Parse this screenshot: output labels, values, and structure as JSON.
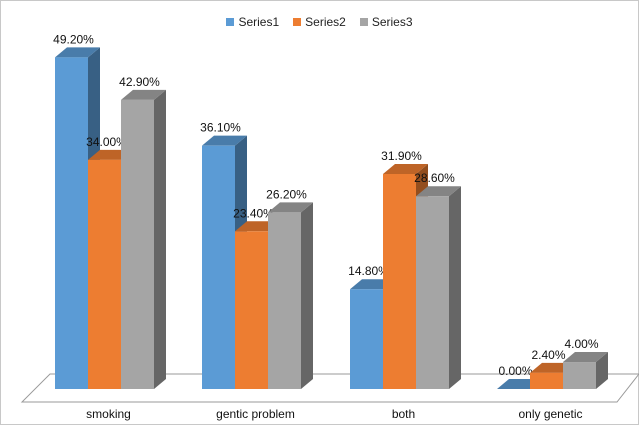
{
  "chart_data": {
    "type": "bar",
    "title": "",
    "xlabel": "",
    "ylabel": "",
    "categories": [
      "smoking",
      "gentic problem",
      "both",
      "only genetic"
    ],
    "series": [
      {
        "name": "Series1",
        "values": [
          49.2,
          36.1,
          14.8,
          0.0
        ],
        "labels": [
          "49.20%",
          "36.10%",
          "14.80%",
          "0.00%"
        ],
        "color": "#5b9bd5"
      },
      {
        "name": "Series2",
        "values": [
          34.0,
          23.4,
          31.9,
          2.4
        ],
        "labels": [
          "34.00%",
          "23.40%",
          "31.90%",
          "2.40%"
        ],
        "color": "#ed7d31"
      },
      {
        "name": "Series3",
        "values": [
          42.9,
          26.2,
          28.6,
          4.0
        ],
        "labels": [
          "42.90%",
          "26.20%",
          "28.60%",
          "4.00%"
        ],
        "color": "#a5a5a5"
      }
    ],
    "ylim": [
      0,
      50
    ],
    "value_format": "percent",
    "legend_position": "top",
    "style": "3d-clustered-column",
    "grid": false
  }
}
